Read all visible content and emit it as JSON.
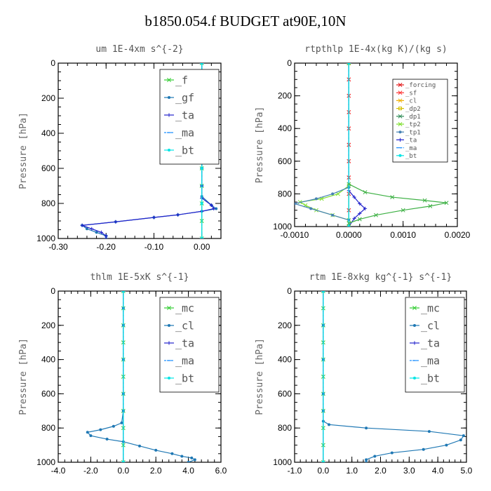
{
  "title": "b1850.054.f  BUDGET at90E,10N",
  "chart_data": [
    {
      "type": "line",
      "title": "um  1E-4xm s^{-2}",
      "ylabel": "Pressure [hPa]",
      "xlim": [
        -0.3,
        0.04
      ],
      "ylim": [
        1000,
        0
      ],
      "xticks": [
        "-0.30",
        "-0.20",
        "-0.10",
        "0.00"
      ],
      "xtick_values": [
        -0.3,
        -0.2,
        -0.1,
        0.0
      ],
      "yticks": [
        "0",
        "200",
        "400",
        "600",
        "800",
        "1000"
      ],
      "ytick_values": [
        0,
        200,
        400,
        600,
        800,
        1000
      ],
      "legend_position": "top-right",
      "legend_size": "large",
      "series": [
        {
          "name": "_f",
          "color": "#32cd32",
          "marker": "x",
          "points": [
            [
              0,
              0
            ],
            [
              0,
              100
            ],
            [
              0,
              200
            ],
            [
              0,
              300
            ],
            [
              0,
              400
            ],
            [
              0,
              500
            ],
            [
              0,
              600
            ],
            [
              0,
              700
            ],
            [
              0,
              800
            ],
            [
              0,
              900
            ],
            [
              0,
              1000
            ]
          ]
        },
        {
          "name": "_gf",
          "color": "#1f78b4",
          "marker": "dot",
          "points": [
            [
              0,
              0
            ],
            [
              0,
              60
            ],
            [
              0.01,
              90
            ],
            [
              0.025,
              130
            ],
            [
              0.01,
              170
            ],
            [
              0,
              200
            ],
            [
              0,
              400
            ],
            [
              0,
              600
            ],
            [
              0,
              700
            ],
            [
              0,
              760
            ],
            [
              0.02,
              810
            ],
            [
              0.03,
              830
            ],
            [
              0,
              845
            ],
            [
              -0.05,
              865
            ],
            [
              -0.1,
              880
            ],
            [
              -0.18,
              905
            ],
            [
              -0.25,
              925
            ],
            [
              -0.24,
              945
            ],
            [
              -0.22,
              965
            ],
            [
              -0.2,
              985
            ],
            [
              -0.2,
              1000
            ]
          ]
        },
        {
          "name": "_ta",
          "color": "#2222cc",
          "marker": "plus",
          "points": [
            [
              0,
              0
            ],
            [
              0,
              60
            ],
            [
              0.01,
              90
            ],
            [
              0.025,
              120
            ],
            [
              0.01,
              160
            ],
            [
              0,
              200
            ],
            [
              0,
              400
            ],
            [
              0,
              600
            ],
            [
              0,
              700
            ],
            [
              0,
              770
            ],
            [
              0.02,
              810
            ],
            [
              0.025,
              830
            ],
            [
              0,
              845
            ],
            [
              -0.05,
              865
            ],
            [
              -0.1,
              880
            ],
            [
              -0.18,
              905
            ],
            [
              -0.25,
              925
            ],
            [
              -0.23,
              945
            ],
            [
              -0.21,
              965
            ],
            [
              -0.2,
              985
            ],
            [
              -0.2,
              1000
            ]
          ]
        },
        {
          "name": "_ma",
          "color": "#1e90ff",
          "marker": "dash",
          "points": [
            [
              0,
              0
            ],
            [
              0,
              1000
            ]
          ]
        },
        {
          "name": "_bt",
          "color": "#00e5e5",
          "marker": "dot",
          "points": [
            [
              0,
              0
            ],
            [
              0,
              200
            ],
            [
              0,
              400
            ],
            [
              0,
              600
            ],
            [
              0,
              800
            ],
            [
              0,
              1000
            ]
          ]
        }
      ]
    },
    {
      "type": "line",
      "title": "rtpthlp  1E-4x(kg K)/(kg s)",
      "ylabel": "Pressure [hPa]",
      "xlim": [
        -0.001,
        0.002
      ],
      "ylim": [
        1000,
        0
      ],
      "xticks": [
        "-0.0010",
        "0.0000",
        "0.0010",
        "0.0020"
      ],
      "xtick_values": [
        -0.001,
        0.0,
        0.001,
        0.002
      ],
      "yticks": [
        "0",
        "200",
        "400",
        "600",
        "800",
        "1000"
      ],
      "ytick_values": [
        0,
        200,
        400,
        600,
        800,
        1000
      ],
      "legend_position": "top-right",
      "legend_size": "small",
      "series": [
        {
          "name": "_forcing",
          "color": "#e31a1c",
          "marker": "x",
          "points": [
            [
              0,
              0
            ],
            [
              0,
              100
            ],
            [
              0,
              200
            ],
            [
              0,
              300
            ],
            [
              0,
              400
            ],
            [
              0,
              500
            ],
            [
              0,
              600
            ],
            [
              0,
              700
            ],
            [
              0,
              800
            ],
            [
              0,
              900
            ],
            [
              0,
              1000
            ]
          ]
        },
        {
          "name": "_sf",
          "color": "#ff3030",
          "marker": "x",
          "points": [
            [
              0,
              0
            ],
            [
              0,
              1000
            ]
          ]
        },
        {
          "name": "_cl",
          "color": "#f0b000",
          "marker": "x",
          "points": [
            [
              0,
              0
            ],
            [
              0,
              1000
            ]
          ]
        },
        {
          "name": "_dp2",
          "color": "#d4c000",
          "marker": "square",
          "points": [
            [
              0,
              0
            ],
            [
              0,
              1000
            ]
          ]
        },
        {
          "name": "_dp1",
          "color": "#2e8b57",
          "marker": "x",
          "points": [
            [
              0,
              0
            ],
            [
              0,
              1000
            ]
          ]
        },
        {
          "name": "_tp2",
          "color": "#7fdf2f",
          "marker": "x",
          "points": [
            [
              0,
              0
            ],
            [
              0,
              750
            ],
            [
              -0.0002,
              800
            ],
            [
              -0.0005,
              830
            ],
            [
              -0.0009,
              850
            ],
            [
              -0.0008,
              870
            ],
            [
              -0.0006,
              900
            ],
            [
              -0.0003,
              930
            ],
            [
              0,
              960
            ],
            [
              0,
              1000
            ]
          ]
        },
        {
          "name": "_tp1",
          "color": "#4682b4",
          "marker": "dot",
          "points": [
            [
              0,
              0
            ],
            [
              0,
              760
            ],
            [
              -0.0003,
              800
            ],
            [
              -0.0006,
              830
            ],
            [
              -0.001,
              860
            ],
            [
              -0.0007,
              890
            ],
            [
              -0.0003,
              930
            ],
            [
              0,
              960
            ],
            [
              0,
              1000
            ]
          ]
        },
        {
          "name": "_ta",
          "color": "#2222cc",
          "marker": "plus",
          "points": [
            [
              0,
              0
            ],
            [
              0,
              780
            ],
            [
              0.0001,
              820
            ],
            [
              0.0002,
              860
            ],
            [
              0.0003,
              890
            ],
            [
              0.0002,
              920
            ],
            [
              0.0001,
              950
            ],
            [
              0,
              1000
            ]
          ]
        },
        {
          "name": "_ma",
          "color": "#1e90ff",
          "marker": "dash",
          "points": [
            [
              0,
              0
            ],
            [
              0,
              1000
            ]
          ]
        },
        {
          "name": "_bt",
          "color": "#00e5e5",
          "marker": "dot",
          "points": [
            [
              0,
              0
            ],
            [
              0,
              1000
            ]
          ]
        },
        {
          "name": "",
          "color": "#3cb043",
          "marker": "x",
          "legend": false,
          "points": [
            [
              0,
              740
            ],
            [
              0.0003,
              790
            ],
            [
              0.0008,
              820
            ],
            [
              0.0014,
              840
            ],
            [
              0.0018,
              855
            ],
            [
              0.0015,
              875
            ],
            [
              0.001,
              900
            ],
            [
              0.0005,
              930
            ],
            [
              0.0002,
              955
            ],
            [
              0,
              980
            ]
          ]
        }
      ]
    },
    {
      "type": "line",
      "title": "thlm  1E-5xK s^{-1}",
      "ylabel": "Pressure [hPa]",
      "xlim": [
        -4.0,
        6.0
      ],
      "ylim": [
        1000,
        0
      ],
      "xticks": [
        "-4.0",
        "-2.0",
        "0.0",
        "2.0",
        "4.0",
        "6.0"
      ],
      "xtick_values": [
        -4,
        -2,
        0,
        2,
        4,
        6
      ],
      "yticks": [
        "0",
        "200",
        "400",
        "600",
        "800",
        "1000"
      ],
      "ytick_values": [
        0,
        200,
        400,
        600,
        800,
        1000
      ],
      "legend_position": "top-right",
      "legend_size": "large",
      "series": [
        {
          "name": "_mc",
          "color": "#32cd32",
          "marker": "x",
          "points": [
            [
              0,
              0
            ],
            [
              0,
              100
            ],
            [
              0,
              200
            ],
            [
              0,
              300
            ],
            [
              0,
              400
            ],
            [
              0,
              500
            ],
            [
              0,
              600
            ],
            [
              0,
              700
            ],
            [
              0,
              800
            ],
            [
              0,
              900
            ],
            [
              0,
              1000
            ]
          ]
        },
        {
          "name": "_cl",
          "color": "#1f78b4",
          "marker": "dot",
          "points": [
            [
              0,
              0
            ],
            [
              0,
              100
            ],
            [
              0,
              200
            ],
            [
              0,
              400
            ],
            [
              0,
              600
            ],
            [
              0,
              700
            ],
            [
              -0.1,
              770
            ],
            [
              -0.6,
              790
            ],
            [
              -1.4,
              810
            ],
            [
              -2.2,
              825
            ],
            [
              -2.0,
              845
            ],
            [
              -1.0,
              865
            ],
            [
              0,
              880
            ],
            [
              1.0,
              905
            ],
            [
              2.0,
              930
            ],
            [
              3.0,
              950
            ],
            [
              3.6,
              965
            ],
            [
              4.2,
              975
            ],
            [
              4.4,
              985
            ],
            [
              4.0,
              1000
            ]
          ]
        },
        {
          "name": "_ta",
          "color": "#2222cc",
          "marker": "plus",
          "points": [
            [
              0,
              0
            ],
            [
              0,
              1000
            ]
          ]
        },
        {
          "name": "_ma",
          "color": "#1e90ff",
          "marker": "dash",
          "points": [
            [
              0,
              0
            ],
            [
              0,
              1000
            ]
          ]
        },
        {
          "name": "_bt",
          "color": "#00e5e5",
          "marker": "dot",
          "points": [
            [
              0,
              0
            ],
            [
              0,
              1000
            ]
          ]
        }
      ]
    },
    {
      "type": "line",
      "title": "rtm  1E-8xkg kg^{-1} s^{-1}",
      "ylabel": "Pressure [hPa]",
      "xlim": [
        -1.0,
        5.0
      ],
      "ylim": [
        1000,
        0
      ],
      "xticks": [
        "-1.0",
        "0.0",
        "1.0",
        "2.0",
        "3.0",
        "4.0",
        "5.0"
      ],
      "xtick_values": [
        -1,
        0,
        1,
        2,
        3,
        4,
        5
      ],
      "yticks": [
        "0",
        "200",
        "400",
        "600",
        "800",
        "1000"
      ],
      "ytick_values": [
        0,
        200,
        400,
        600,
        800,
        1000
      ],
      "legend_position": "top-right",
      "legend_size": "large",
      "series": [
        {
          "name": "_mc",
          "color": "#32cd32",
          "marker": "x",
          "points": [
            [
              0,
              0
            ],
            [
              0,
              100
            ],
            [
              0,
              200
            ],
            [
              0,
              300
            ],
            [
              0,
              400
            ],
            [
              0,
              500
            ],
            [
              0,
              600
            ],
            [
              0,
              700
            ],
            [
              0,
              800
            ],
            [
              0,
              900
            ],
            [
              0,
              1000
            ]
          ]
        },
        {
          "name": "_cl",
          "color": "#1f78b4",
          "marker": "dot",
          "points": [
            [
              0,
              0
            ],
            [
              0,
              200
            ],
            [
              0,
              400
            ],
            [
              0,
              600
            ],
            [
              0,
              700
            ],
            [
              0,
              760
            ],
            [
              0.2,
              780
            ],
            [
              1.5,
              800
            ],
            [
              3.7,
              820
            ],
            [
              4.9,
              845
            ],
            [
              4.8,
              870
            ],
            [
              4.3,
              900
            ],
            [
              3.5,
              925
            ],
            [
              2.4,
              945
            ],
            [
              1.8,
              965
            ],
            [
              1.5,
              985
            ],
            [
              1.5,
              1000
            ]
          ]
        },
        {
          "name": "_ta",
          "color": "#2222cc",
          "marker": "plus",
          "points": [
            [
              0,
              0
            ],
            [
              0,
              1000
            ]
          ]
        },
        {
          "name": "_ma",
          "color": "#1e90ff",
          "marker": "dash",
          "points": [
            [
              0,
              0
            ],
            [
              0,
              1000
            ]
          ]
        },
        {
          "name": "_bt",
          "color": "#00e5e5",
          "marker": "dot",
          "points": [
            [
              0,
              0
            ],
            [
              0,
              1000
            ]
          ]
        }
      ]
    }
  ]
}
